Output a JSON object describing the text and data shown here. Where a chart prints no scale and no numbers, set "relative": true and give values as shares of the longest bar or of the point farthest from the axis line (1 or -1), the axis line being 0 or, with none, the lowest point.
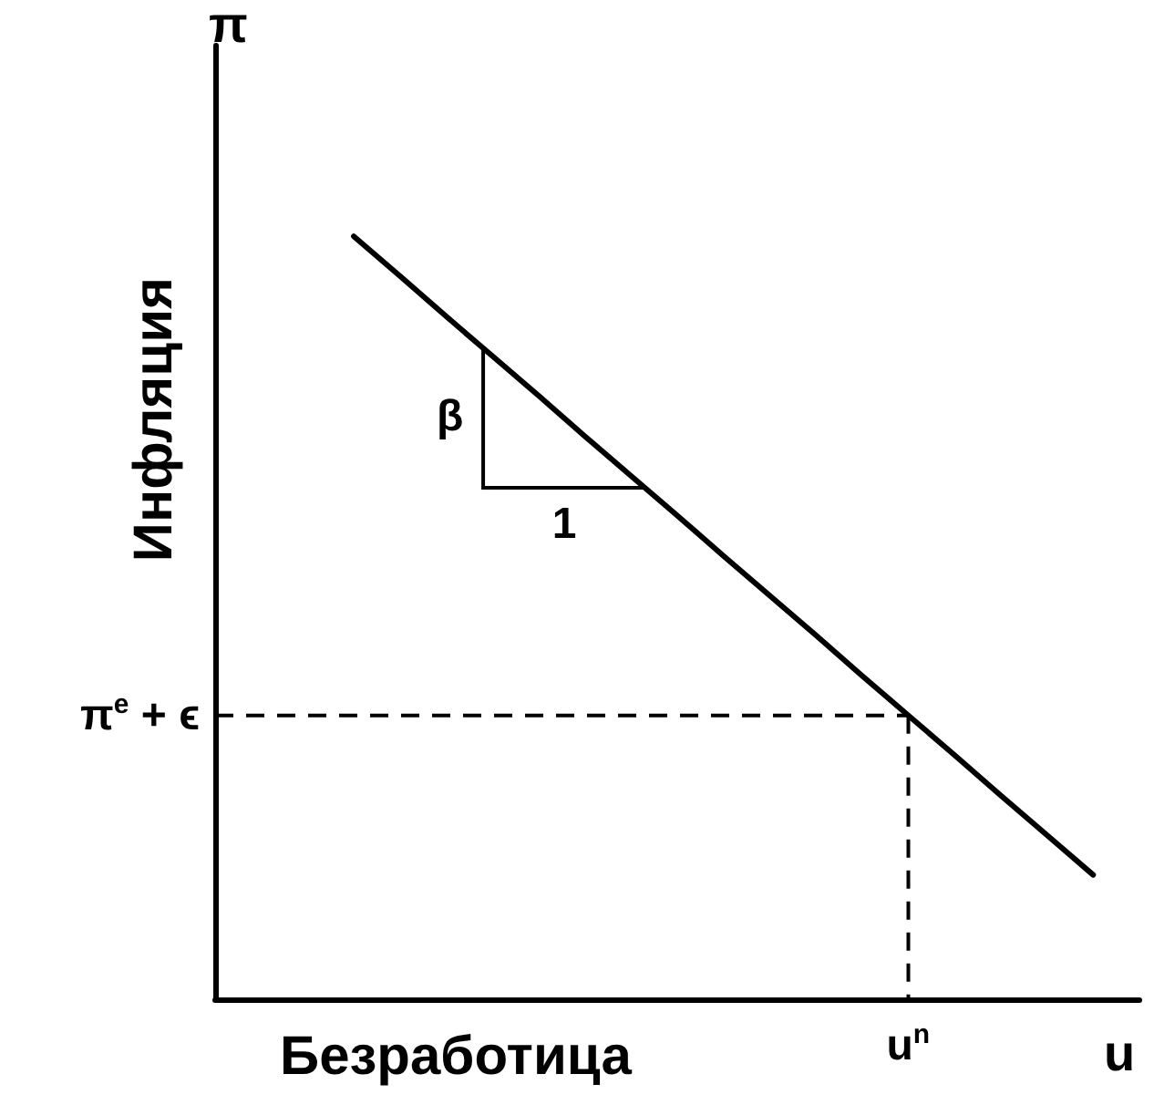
{
  "chart_data": {
    "type": "line",
    "relative": true,
    "xlabel": "Безработица",
    "ylabel": "Инфляция",
    "categories": [
      null,
      null,
      null,
      null,
      null,
      null,
      null,
      null,
      null,
      null,
      null,
      null,
      null,
      null,
      null,
      null,
      null,
      null,
      null,
      null,
      null
    ],
    "series": [
      {
        "color": "#000000",
        "values": [
          null,
          null,
          null,
          1,
          0.948,
          0.895,
          0.843,
          0.791,
          0.738,
          0.686,
          0.634,
          0.581,
          0.529,
          0.477,
          0.424,
          0.372,
          0.32,
          0.267,
          0.215,
          0.163,
          null
        ]
      }
    ],
    "ref_lines": [
      {
        "axis": "y",
        "value": 0.372,
        "label": "π$^{e}$ + ϵ",
        "color": "#000000",
        "line_style": "dashed"
      }
    ],
    "annotations": [
      "β",
      "1",
      "u$^{n}$",
      "u",
      "π"
    ],
    "grid": false,
    "marker": "none",
    "line_style": "solid"
  }
}
